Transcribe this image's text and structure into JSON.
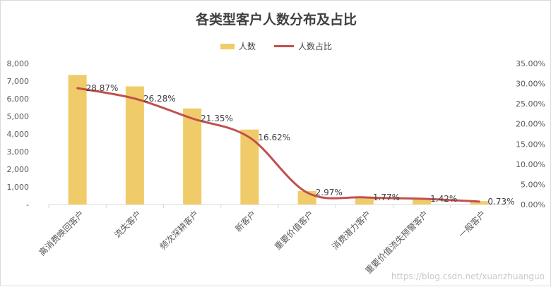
{
  "chart_data": {
    "type": "bar",
    "title": "各类型客户人数分布及占比",
    "categories": [
      "高消费唤回客户",
      "流失客户",
      "频次深耕客户",
      "新客户",
      "重要价值客户",
      "消费潜力客户",
      "重要价值流失预警客户",
      "一般客户"
    ],
    "series": [
      {
        "name": "人数",
        "type": "bar",
        "axis": "left",
        "values": [
          7350,
          6700,
          5450,
          4250,
          760,
          450,
          360,
          190
        ]
      },
      {
        "name": "人数占比",
        "type": "line",
        "axis": "right",
        "values": [
          28.87,
          26.28,
          21.35,
          16.62,
          2.97,
          1.77,
          1.42,
          0.73
        ],
        "labels": [
          "28.87%",
          "26.28%",
          "21.35%",
          "16.62%",
          "2.97%",
          "1.77%",
          "1.42%",
          "0.73%"
        ]
      }
    ],
    "y_left": {
      "range": [
        0,
        8000
      ],
      "ticks": [
        "-",
        "1,000",
        "2,000",
        "3,000",
        "4,000",
        "5,000",
        "6,000",
        "7,000",
        "8,000"
      ]
    },
    "y_right": {
      "range": [
        0,
        35
      ],
      "ticks": [
        "0.00%",
        "5.00%",
        "10.00%",
        "15.00%",
        "20.00%",
        "25.00%",
        "30.00%",
        "35.00%"
      ]
    },
    "grid": false,
    "legend_position": "top-center",
    "colors": {
      "bar": "#f0cb69",
      "line": "#c0504d",
      "text": "#595959",
      "axis": "#d9d9d9"
    }
  },
  "watermark": "https://blog.csdn.net/xuanzhuanguo"
}
